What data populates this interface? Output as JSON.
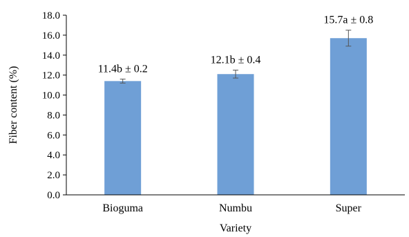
{
  "chart_data": {
    "type": "bar",
    "title": "",
    "xlabel": "Variety",
    "ylabel": "Fiber content (%)",
    "ylim": [
      0,
      18
    ],
    "yticks": [
      "0.0",
      "2.0",
      "4.0",
      "6.0",
      "8.0",
      "10.0",
      "12.0",
      "14.0",
      "16.0",
      "18.0"
    ],
    "grid": false,
    "legend": "none",
    "bar_color": "#6f9fd6",
    "error_color": "#555555",
    "categories": [
      "Bioguma",
      "Numbu",
      "Super"
    ],
    "values": [
      11.4,
      12.1,
      15.7
    ],
    "errors": [
      0.2,
      0.4,
      0.8
    ],
    "data_labels": [
      "11.4b ± 0.2",
      "12.1b ± 0.4",
      "15.7a ± 0.8"
    ]
  }
}
